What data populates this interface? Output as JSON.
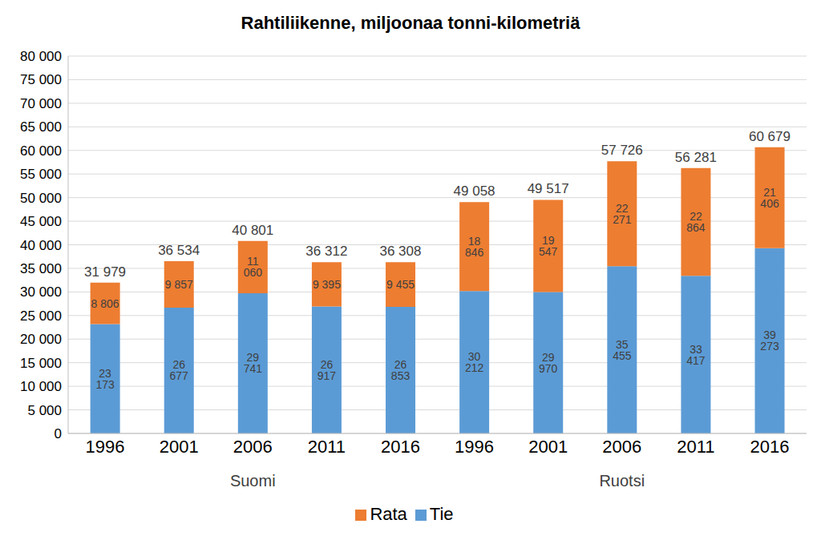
{
  "chart_data": {
    "type": "bar",
    "title": "Rahtiliikenne, miljoonaa tonni-kilometriä",
    "stacked": true,
    "data_labels": true,
    "grid": true,
    "legend": "bottom",
    "categories": [
      "1996",
      "2001",
      "2006",
      "2011",
      "2016",
      "1996",
      "2001",
      "2006",
      "2011",
      "2016"
    ],
    "groups": [
      "Suomi",
      "Suomi",
      "Suomi",
      "Suomi",
      "Suomi",
      "Ruotsi",
      "Ruotsi",
      "Ruotsi",
      "Ruotsi",
      "Ruotsi"
    ],
    "series": [
      {
        "name": "Tie",
        "color": "#5b9bd5",
        "values": [
          23173,
          26677,
          29741,
          26917,
          26853,
          30212,
          29970,
          35455,
          33417,
          39273
        ],
        "value_labels": [
          "23 173",
          "26 677",
          "29 741",
          "26 917",
          "26 853",
          "30 212",
          "29 970",
          "35 455",
          "33 417",
          "39 273"
        ]
      },
      {
        "name": "Rata",
        "color": "#ed7d31",
        "values": [
          8806,
          9857,
          11060,
          9395,
          9455,
          18846,
          19547,
          22271,
          22864,
          21406
        ],
        "value_labels": [
          "8 806",
          "9 857",
          "11 060",
          "9 395",
          "9 455",
          "18 846",
          "19 547",
          "22 271",
          "22 864",
          "21 406"
        ]
      }
    ],
    "totals": [
      31979,
      36534,
      40801,
      36312,
      36308,
      49058,
      49517,
      57726,
      56281,
      60679
    ],
    "total_labels": [
      "31 979",
      "36 534",
      "40 801",
      "36 312",
      "36 308",
      "49 058",
      "49 517",
      "57 726",
      "56 281",
      "60 679"
    ],
    "ylim": [
      0,
      80000
    ],
    "yticks": [
      0,
      {
        "value": 5000,
        "label": "5 000"
      },
      {
        "value": 10000,
        "label": "10 000"
      },
      {
        "value": 15000,
        "label": "15 000"
      },
      {
        "value": 20000,
        "label": "20 000"
      },
      {
        "value": 25000,
        "label": "25 000"
      },
      {
        "value": 30000,
        "label": "30 000"
      },
      {
        "value": 35000,
        "label": "35 000"
      },
      {
        "value": 40000,
        "label": "40 000"
      },
      {
        "value": 45000,
        "label": "45 000"
      },
      {
        "value": 50000,
        "label": "50 000"
      },
      {
        "value": 55000,
        "label": "55 000"
      },
      {
        "value": 60000,
        "label": "60 000"
      },
      {
        "value": 65000,
        "label": "65 000"
      },
      {
        "value": 70000,
        "label": "70 000"
      },
      {
        "value": 75000,
        "label": "75 000"
      },
      {
        "value": 80000,
        "label": "80 000"
      }
    ]
  }
}
